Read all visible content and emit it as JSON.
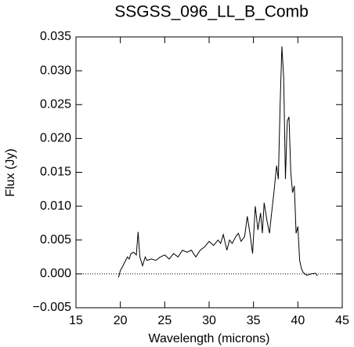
{
  "chart_data": {
    "type": "line",
    "title": "SSGSS_096_LL_B_Comb",
    "x_label": "Wavelength (microns)",
    "y_label": "Flux (Jy)",
    "xlim": [
      15,
      45
    ],
    "xticks": [
      15,
      20,
      25,
      30,
      35,
      40,
      45
    ],
    "ylim": [
      -0.005,
      0.035
    ],
    "yticks": [
      {
        "value": -0.005,
        "label": "−0.005"
      },
      {
        "value": 0,
        "label": "0.000"
      },
      {
        "value": 0.005,
        "label": "0.005"
      },
      {
        "value": 0.01,
        "label": "0.010"
      },
      {
        "value": 0.015,
        "label": "0.015"
      },
      {
        "value": 0.02,
        "label": "0.020"
      },
      {
        "value": 0.025,
        "label": "0.025"
      },
      {
        "value": 0.03,
        "label": "0.030"
      },
      {
        "value": 0.035,
        "label": "0.035"
      }
    ],
    "zero_line": true,
    "series": [
      {
        "color": "#000000",
        "x": [
          19.8,
          20.0,
          20.3,
          20.6,
          20.8,
          21.0,
          21.2,
          21.5,
          21.8,
          22.0,
          22.2,
          22.5,
          22.8,
          23.0,
          23.5,
          24.0,
          24.5,
          25.0,
          25.5,
          26.0,
          26.5,
          27.0,
          27.5,
          28.0,
          28.5,
          29.0,
          29.5,
          30.0,
          30.5,
          31.0,
          31.3,
          31.6,
          32.0,
          32.3,
          32.6,
          33.0,
          33.3,
          33.6,
          34.0,
          34.3,
          34.6,
          34.9,
          35.2,
          35.5,
          35.8,
          36.0,
          36.2,
          36.5,
          36.8,
          37.0,
          37.3,
          37.6,
          37.8,
          38.0,
          38.2,
          38.4,
          38.6,
          38.8,
          39.0,
          39.2,
          39.4,
          39.6,
          39.8,
          40.0,
          40.2,
          40.4,
          40.6,
          41.0,
          41.5,
          42.0,
          42.2
        ],
        "values": [
          -0.0005,
          0.0005,
          0.0012,
          0.002,
          0.0025,
          0.0022,
          0.003,
          0.0032,
          0.0028,
          0.0062,
          0.0025,
          0.0012,
          0.0025,
          0.002,
          0.0022,
          0.002,
          0.0025,
          0.0028,
          0.0022,
          0.003,
          0.0025,
          0.0035,
          0.0032,
          0.0035,
          0.0025,
          0.0035,
          0.004,
          0.0048,
          0.0042,
          0.005,
          0.0045,
          0.0058,
          0.0035,
          0.005,
          0.0045,
          0.0055,
          0.006,
          0.0048,
          0.0055,
          0.0085,
          0.006,
          0.003,
          0.01,
          0.0065,
          0.009,
          0.006,
          0.0105,
          0.008,
          0.006,
          0.0085,
          0.012,
          0.016,
          0.014,
          0.025,
          0.0336,
          0.029,
          0.014,
          0.0225,
          0.0232,
          0.015,
          0.012,
          0.013,
          0.006,
          0.007,
          0.002,
          0.0008,
          0.0002,
          -0.0002,
          0,
          0.0001,
          -0.0003
        ]
      }
    ]
  }
}
